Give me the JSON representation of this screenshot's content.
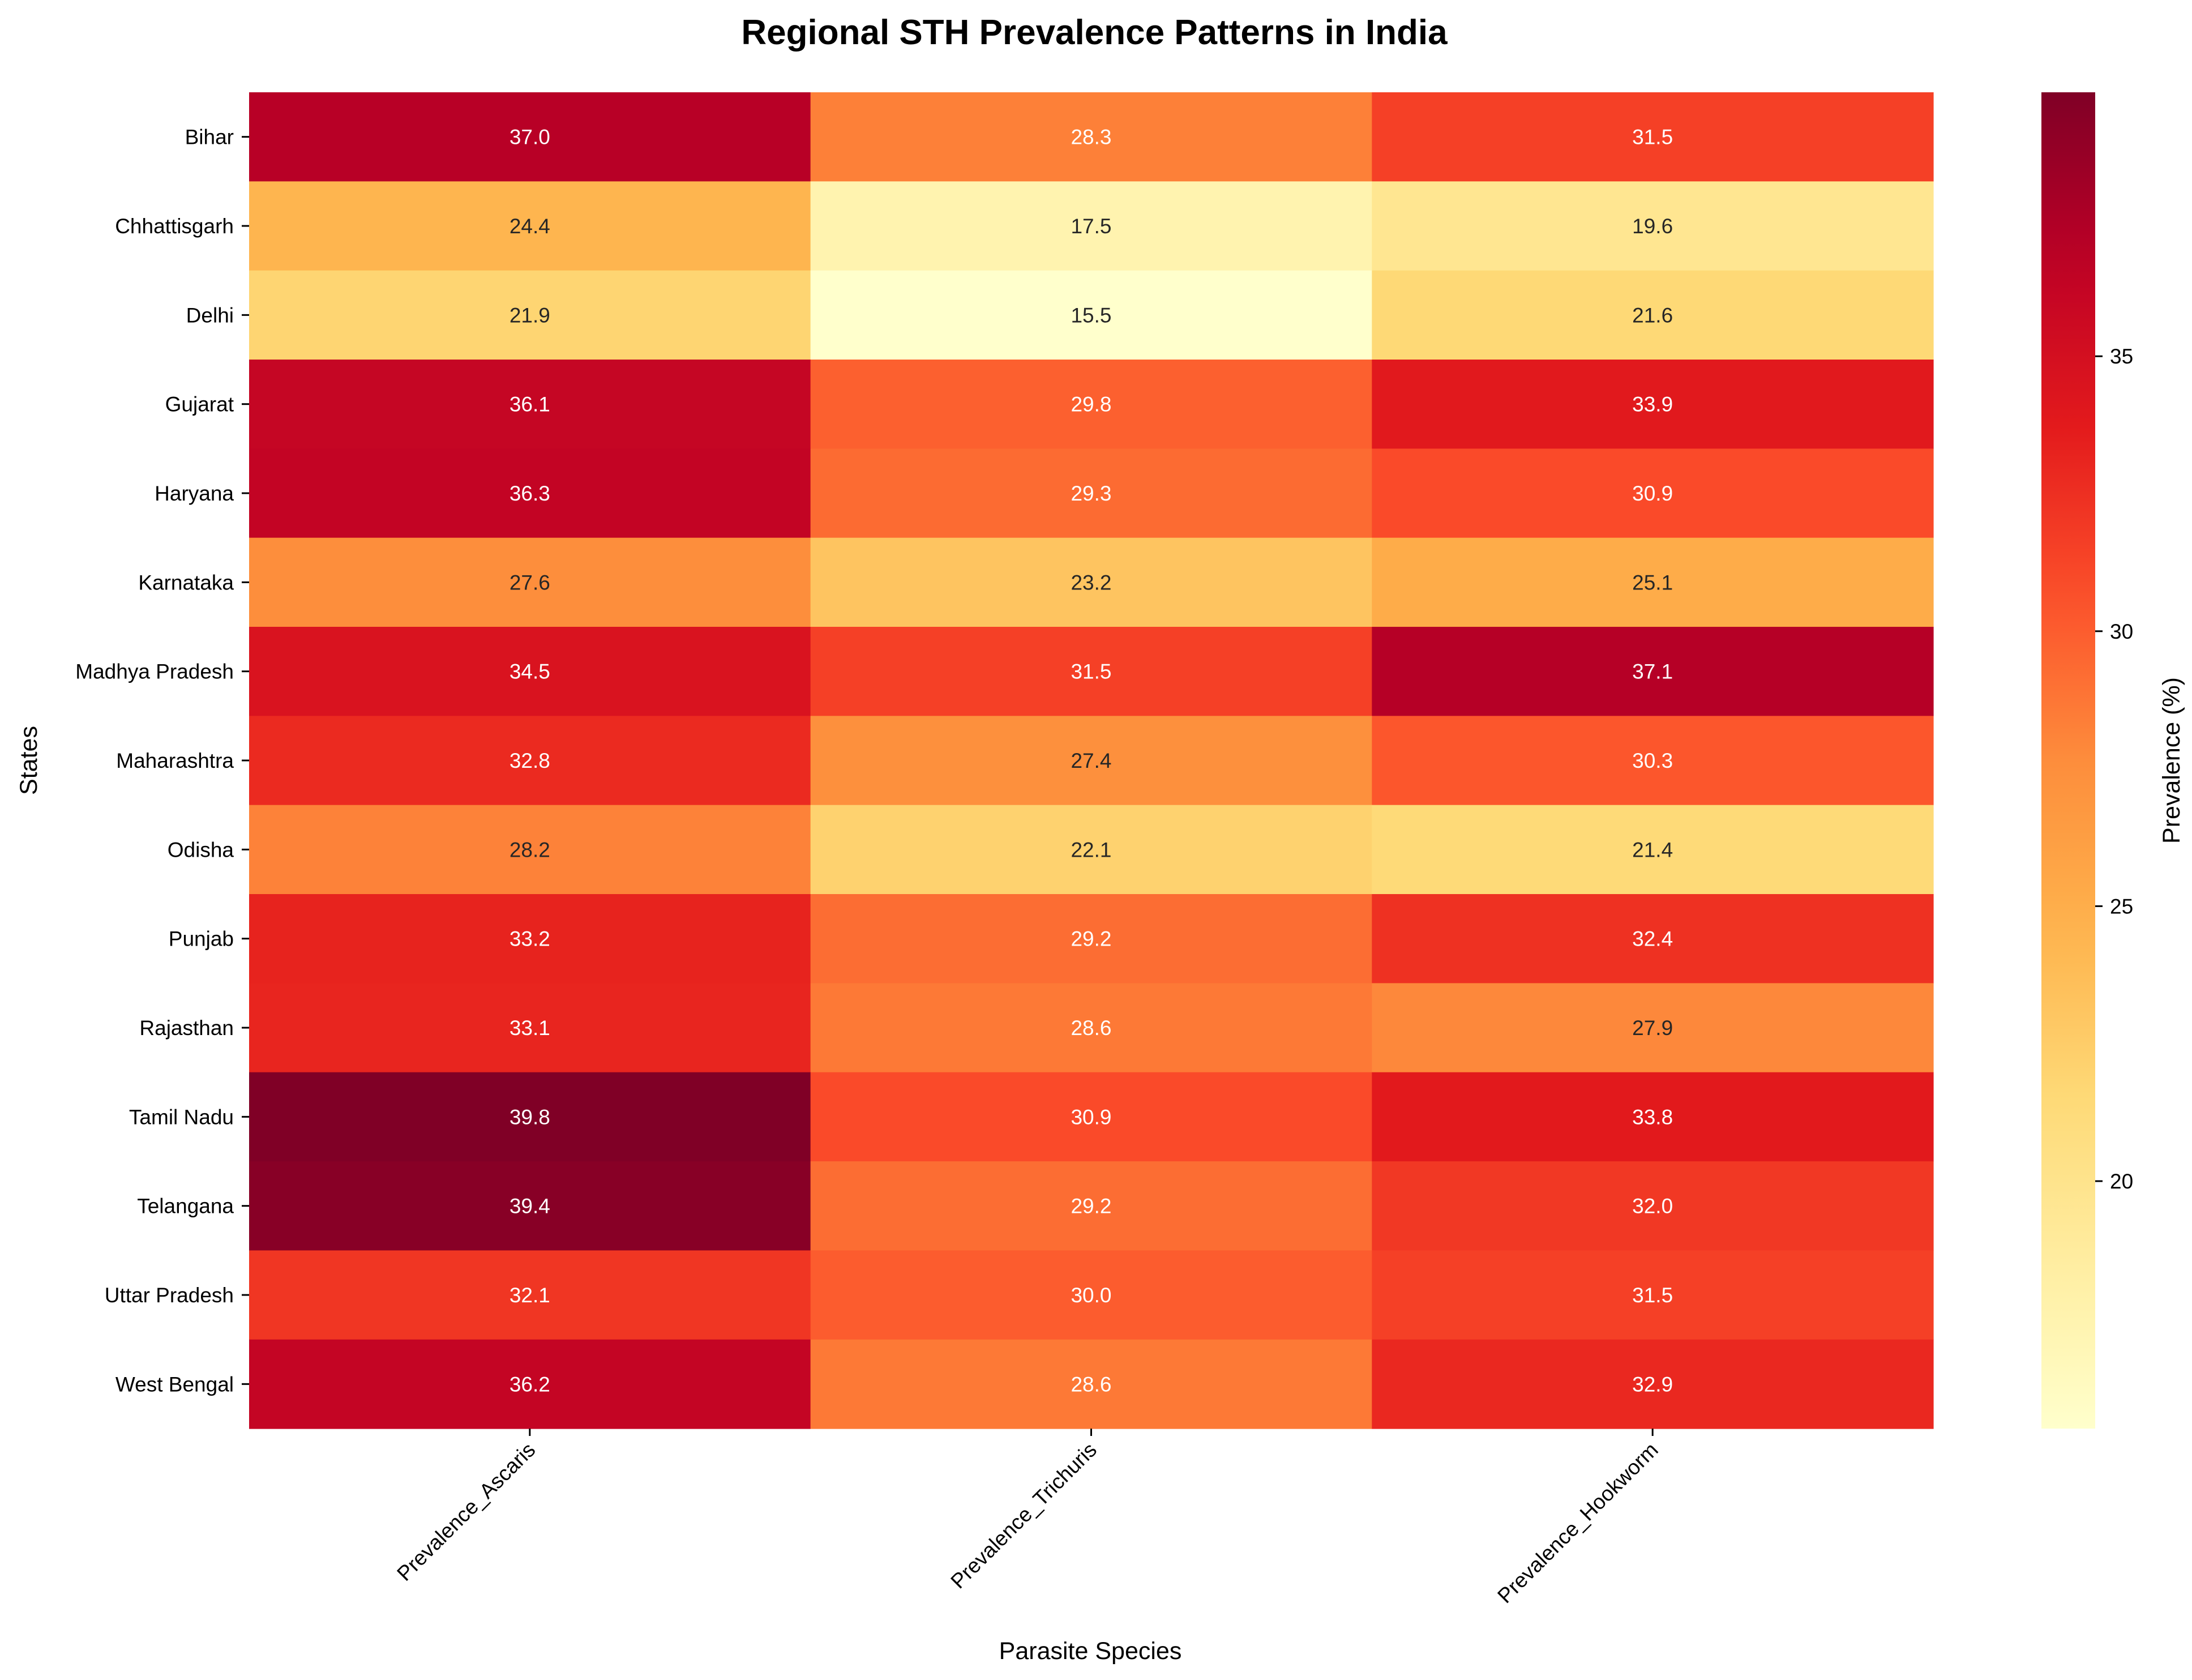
{
  "chart_data": {
    "type": "heatmap",
    "title": "Regional STH Prevalence Patterns in India",
    "xlabel": "Parasite Species",
    "ylabel": "States",
    "columns": [
      "Prevalence_Ascaris",
      "Prevalence_Trichuris",
      "Prevalence_Hookworm"
    ],
    "rows": [
      "Bihar",
      "Chhattisgarh",
      "Delhi",
      "Gujarat",
      "Haryana",
      "Karnataka",
      "Madhya Pradesh",
      "Maharashtra",
      "Odisha",
      "Punjab",
      "Rajasthan",
      "Tamil Nadu",
      "Telangana",
      "Uttar Pradesh",
      "West Bengal"
    ],
    "values": [
      [
        37.0,
        28.3,
        31.5
      ],
      [
        24.4,
        17.5,
        19.6
      ],
      [
        21.9,
        15.5,
        21.6
      ],
      [
        36.1,
        29.8,
        33.9
      ],
      [
        36.3,
        29.3,
        30.9
      ],
      [
        27.6,
        23.2,
        25.1
      ],
      [
        34.5,
        31.5,
        37.1
      ],
      [
        32.8,
        27.4,
        30.3
      ],
      [
        28.2,
        22.1,
        21.4
      ],
      [
        33.2,
        29.2,
        32.4
      ],
      [
        33.1,
        28.6,
        27.9
      ],
      [
        39.8,
        30.9,
        33.8
      ],
      [
        39.4,
        29.2,
        32.0
      ],
      [
        32.1,
        30.0,
        31.5
      ],
      [
        36.2,
        28.6,
        32.9
      ]
    ],
    "value_format": "0.1f",
    "colormap": "YlOrRd",
    "colorbar": {
      "label": "Prevalence (%)",
      "range": [
        15.5,
        39.8
      ],
      "ticks": [
        20,
        25,
        30,
        35
      ]
    },
    "grid": false
  }
}
